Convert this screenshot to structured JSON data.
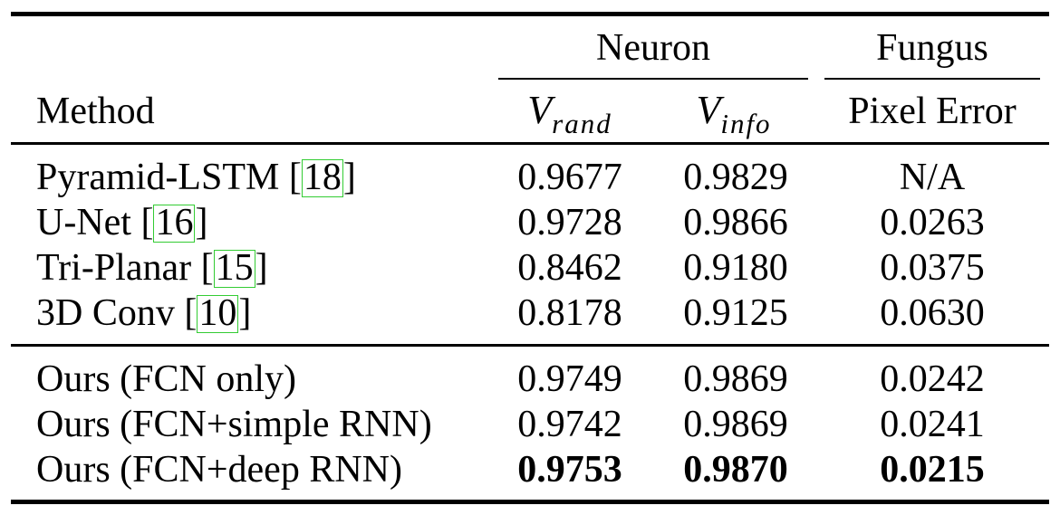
{
  "table": {
    "header": {
      "group_neuron": "Neuron",
      "group_fungus": "Fungus",
      "method": "Method",
      "v_rand_base": "V",
      "v_rand_sub": "rand",
      "v_info_base": "V",
      "v_info_sub": "info",
      "pixel_error": "Pixel Error"
    },
    "rows": [
      {
        "name": "Pyramid-LSTM [",
        "ref": "18",
        "close": "]",
        "vrand": "0.9677",
        "vinfo": "0.9829",
        "pe": "N/A"
      },
      {
        "name": "U-Net [",
        "ref": "16",
        "close": "]",
        "vrand": "0.9728",
        "vinfo": "0.9866",
        "pe": "0.0263"
      },
      {
        "name": "Tri-Planar [",
        "ref": "15",
        "close": "]",
        "vrand": "0.8462",
        "vinfo": "0.9180",
        "pe": "0.0375"
      },
      {
        "name": "3D Conv [",
        "ref": "10",
        "close": "]",
        "vrand": "0.8178",
        "vinfo": "0.9125",
        "pe": "0.0630"
      },
      {
        "name": "Ours (FCN only)",
        "vrand": "0.9749",
        "vinfo": "0.9869",
        "pe": "0.0242"
      },
      {
        "name": "Ours (FCN+simple RNN)",
        "vrand": "0.9742",
        "vinfo": "0.9869",
        "pe": "0.0241"
      },
      {
        "name": "Ours (FCN+deep RNN)",
        "vrand": "0.9753",
        "vinfo": "0.9870",
        "pe": "0.0215"
      }
    ]
  }
}
